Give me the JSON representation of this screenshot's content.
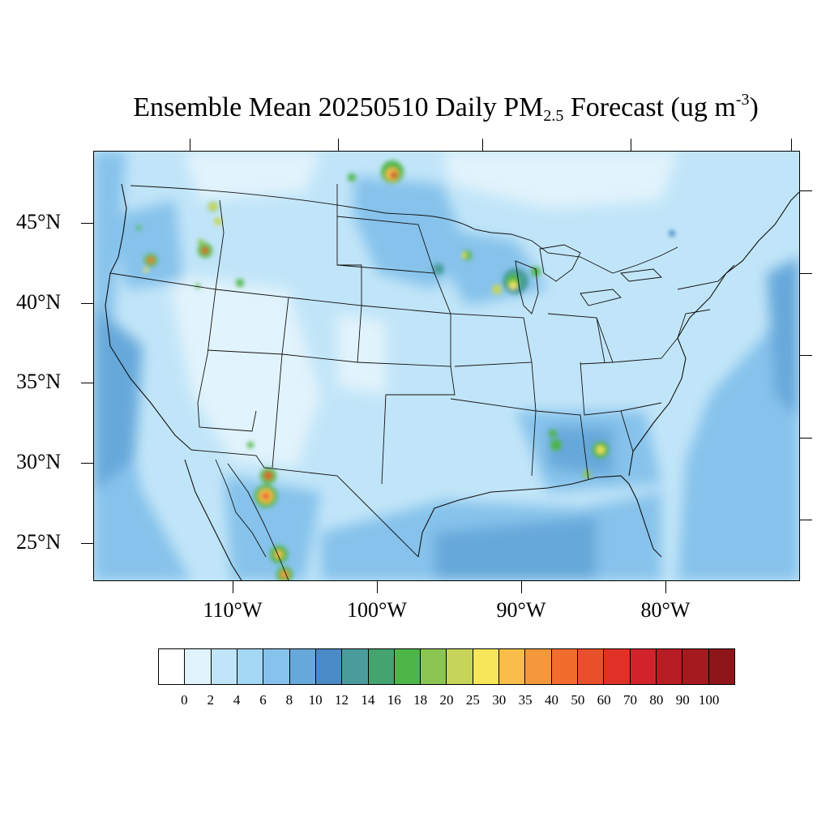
{
  "title": {
    "prefix": "Ensemble Mean 20250510 Daily PM",
    "subscript": "2.5",
    "middle": " Forecast (ug m",
    "superscript": "-3",
    "suffix": ")"
  },
  "map": {
    "background_color": "#bfe3f7",
    "latitude_labels": [
      "45°N",
      "40°N",
      "35°N",
      "30°N",
      "25°N"
    ],
    "longitude_labels": [
      "110°W",
      "100°W",
      "90°W",
      "80°W"
    ],
    "hotspots": [
      {
        "name": "north-dakota-fire",
        "level": 90
      },
      {
        "name": "mexico-sierra-madre-1",
        "level": 70
      },
      {
        "name": "mexico-sierra-madre-2",
        "level": 60
      },
      {
        "name": "mexico-sierra-madre-3",
        "level": 40
      },
      {
        "name": "oregon-cascades",
        "level": 40
      },
      {
        "name": "idaho-1",
        "level": 50
      },
      {
        "name": "wisconsin",
        "level": 25
      },
      {
        "name": "georgia",
        "level": 25
      },
      {
        "name": "alabama",
        "level": 18
      }
    ]
  },
  "colorbar": {
    "colors": [
      "#ffffff",
      "#e1f3fc",
      "#c1e5f8",
      "#a3d8f5",
      "#86c2eb",
      "#66a8da",
      "#4a8ac7",
      "#4a9c9c",
      "#44a36e",
      "#4db649",
      "#8ac552",
      "#c6d55a",
      "#f8e65a",
      "#f8bd4a",
      "#f5983b",
      "#f26d2d",
      "#e8502a",
      "#e03127",
      "#d2232d",
      "#b81c24",
      "#a41a1f",
      "#8e1519"
    ],
    "labels": [
      "0",
      "2",
      "4",
      "6",
      "8",
      "10",
      "12",
      "14",
      "16",
      "18",
      "20",
      "25",
      "30",
      "35",
      "40",
      "50",
      "60",
      "70",
      "80",
      "90",
      "100"
    ]
  }
}
